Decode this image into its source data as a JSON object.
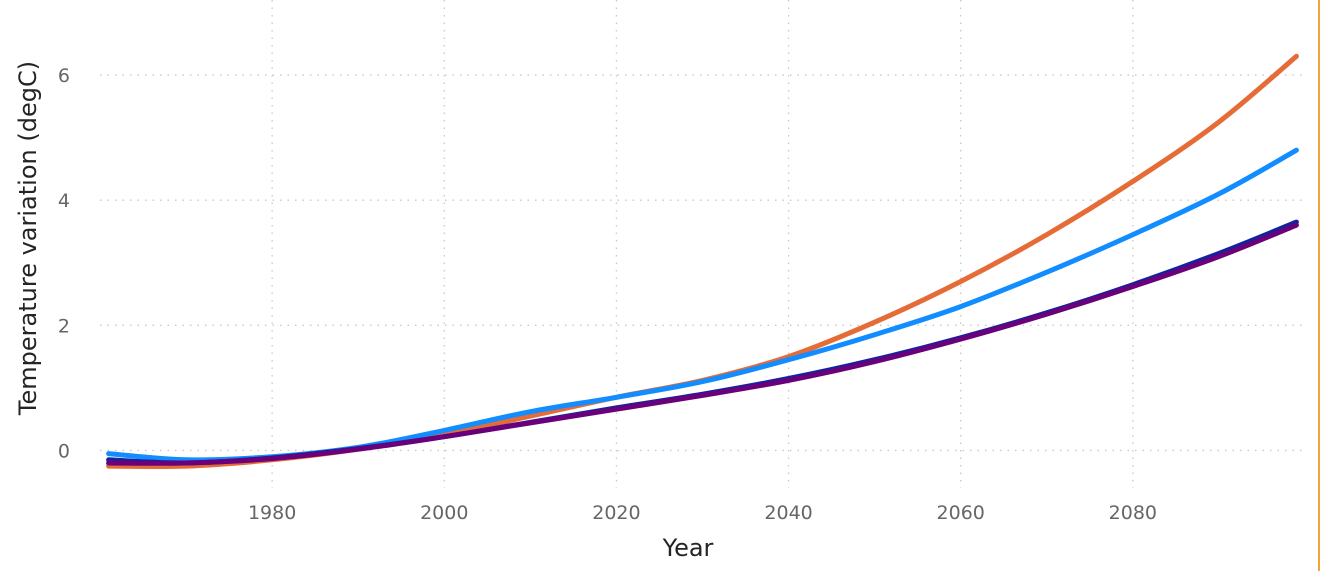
{
  "chart_data": {
    "type": "line",
    "title": "",
    "xlabel": "Year",
    "ylabel": "Temperature variation (degC)",
    "xlim": [
      1960,
      2100
    ],
    "ylim": [
      -0.6,
      7.2
    ],
    "x_ticks": [
      1980,
      2000,
      2020,
      2040,
      2060,
      2080
    ],
    "y_ticks": [
      0,
      2,
      4,
      6
    ],
    "grid": true,
    "legend": "none",
    "x": [
      1961,
      1970,
      1980,
      1990,
      2000,
      2010,
      2020,
      2030,
      2040,
      2050,
      2060,
      2070,
      2080,
      2090,
      2099
    ],
    "series": [
      {
        "color": "#e66c37",
        "values": [
          -0.25,
          -0.25,
          -0.15,
          0.02,
          0.25,
          0.55,
          0.85,
          1.12,
          1.5,
          2.05,
          2.7,
          3.45,
          4.3,
          5.25,
          6.3
        ]
      },
      {
        "color": "#118dff",
        "values": [
          -0.05,
          -0.15,
          -0.1,
          0.05,
          0.32,
          0.62,
          0.85,
          1.1,
          1.45,
          1.85,
          2.3,
          2.85,
          3.45,
          4.1,
          4.8
        ]
      },
      {
        "color": "#12239e",
        "values": [
          -0.15,
          -0.2,
          -0.12,
          0.03,
          0.22,
          0.45,
          0.68,
          0.9,
          1.15,
          1.45,
          1.8,
          2.2,
          2.65,
          3.15,
          3.65
        ]
      },
      {
        "color": "#6b007b",
        "values": [
          -0.2,
          -0.2,
          -0.13,
          0.02,
          0.22,
          0.44,
          0.66,
          0.88,
          1.12,
          1.42,
          1.78,
          2.18,
          2.62,
          3.1,
          3.6
        ]
      }
    ]
  },
  "frame": {
    "edge_color": "#f2a33a",
    "grid_color": "#c8c8c8"
  }
}
